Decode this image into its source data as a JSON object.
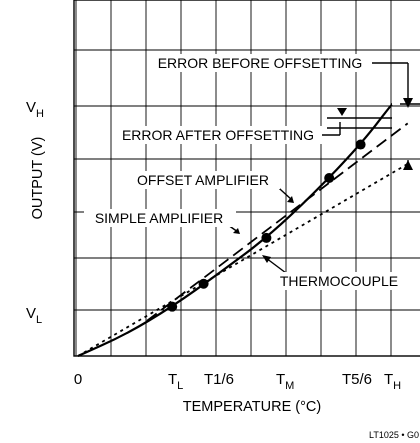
{
  "chart_data": {
    "type": "line",
    "xlabel": "TEMPERATURE (°C)",
    "ylabel": "OUTPUT (V)",
    "x_tick_labels": [
      {
        "main": "0",
        "sub": ""
      },
      {
        "main": "T",
        "sub": "L"
      },
      {
        "main": "T1/6",
        "sub": ""
      },
      {
        "main": "T",
        "sub": "M"
      },
      {
        "main": "T5/6",
        "sub": ""
      },
      {
        "main": "T",
        "sub": "H"
      }
    ],
    "y_tick_labels": [
      {
        "main": "V",
        "sub": "L"
      },
      {
        "main": "V",
        "sub": "H"
      }
    ],
    "grid": true,
    "x_range": [
      0,
      10
    ],
    "y_range": [
      0,
      10
    ],
    "series": [
      {
        "name": "THERMOCOUPLE",
        "style": "solid",
        "points": [
          [
            0,
            0
          ],
          [
            1.5,
            0.6
          ],
          [
            3,
            1.4
          ],
          [
            4.5,
            2.35
          ],
          [
            6,
            3.35
          ],
          [
            7.5,
            4.6
          ],
          [
            9,
            6.0
          ],
          [
            10,
            7.15
          ]
        ]
      },
      {
        "name": "OFFSET AMPLIFIER",
        "style": "dashed",
        "points": [
          [
            2.2,
            1.0
          ],
          [
            10.5,
            6.6
          ]
        ]
      },
      {
        "name": "SIMPLE AMPLIFIER",
        "style": "dotted",
        "points": [
          [
            0,
            0
          ],
          [
            10.5,
            5.45
          ]
        ]
      }
    ],
    "markers": [
      [
        3,
        1.4
      ],
      [
        4,
        2.05
      ],
      [
        6,
        3.35
      ],
      [
        8,
        5.05
      ],
      [
        9,
        6.0
      ]
    ],
    "annotations": [
      "ERROR BEFORE OFFSETTING",
      "ERROR AFTER OFFSETTING",
      "OFFSET AMPLIFIER",
      "SIMPLE AMPLIFIER",
      "THERMOCOUPLE"
    ],
    "footer_note": "LT1025 • G0"
  },
  "colors": {
    "ink": "#000000",
    "background": "#ffffff"
  }
}
